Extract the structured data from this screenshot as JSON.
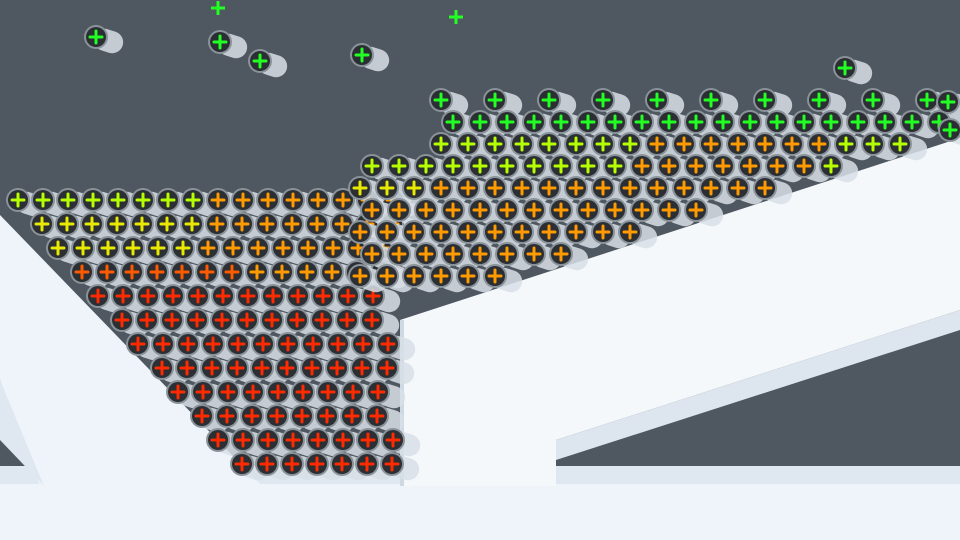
{
  "scene": {
    "description_type": "physics-simulation-3d-render",
    "background_color": "#4f5761",
    "geometry_color": "#eef4f9",
    "geometry_shadow_color": "#c9d5e0",
    "particle_body_color": "#d8dfe6",
    "particle_cap_color": "#2b2f33",
    "particle_rim_color": "#8a929a",
    "particle_colors": {
      "red": "#ff2a00",
      "orange-red": "#ff5a00",
      "orange": "#ff9a00",
      "yellow": "#e8e800",
      "yellow-green": "#b6ff00",
      "green": "#22ff22"
    },
    "particle_icon": "plus-sign-icon"
  }
}
